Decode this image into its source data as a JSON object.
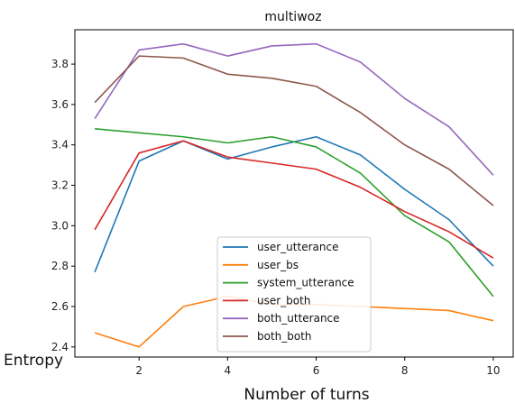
{
  "chart_data": {
    "type": "line",
    "title": "multiwoz",
    "xlabel": "Number of turns",
    "ylabel": "Entropy",
    "x": [
      1,
      2,
      3,
      4,
      5,
      6,
      7,
      8,
      9,
      10
    ],
    "xlim": [
      0.55,
      10.45
    ],
    "ylim": [
      2.35,
      3.97
    ],
    "xticks": [
      2,
      4,
      6,
      8,
      10
    ],
    "yticks": [
      2.4,
      2.6,
      2.8,
      3.0,
      3.2,
      3.4,
      3.6,
      3.8
    ],
    "ytick_labels": [
      "2.4",
      "2.6",
      "2.8",
      "3.0",
      "3.2",
      "3.4",
      "3.6",
      "3.8"
    ],
    "grid": false,
    "legend_position": "lower center",
    "series": [
      {
        "name": "user_utterance",
        "color": "#1f77b4",
        "values": [
          2.77,
          3.32,
          3.42,
          3.33,
          3.39,
          3.44,
          3.35,
          3.18,
          3.03,
          2.8
        ]
      },
      {
        "name": "user_bs",
        "color": "#ff7f0e",
        "values": [
          2.47,
          2.4,
          2.6,
          2.65,
          2.61,
          2.61,
          2.6,
          2.59,
          2.58,
          2.53
        ]
      },
      {
        "name": "system_utterance",
        "color": "#2ca02c",
        "values": [
          3.48,
          3.46,
          3.44,
          3.41,
          3.44,
          3.39,
          3.26,
          3.05,
          2.92,
          2.65
        ]
      },
      {
        "name": "user_both",
        "color": "#d62728",
        "values": [
          2.98,
          3.36,
          3.42,
          3.34,
          3.31,
          3.28,
          3.19,
          3.07,
          2.97,
          2.84
        ]
      },
      {
        "name": "both_utterance",
        "color": "#9467bd",
        "values": [
          3.53,
          3.87,
          3.9,
          3.84,
          3.89,
          3.9,
          3.81,
          3.63,
          3.49,
          3.25
        ]
      },
      {
        "name": "both_both",
        "color": "#8c564b",
        "values": [
          3.61,
          3.84,
          3.83,
          3.75,
          3.73,
          3.69,
          3.56,
          3.4,
          3.28,
          3.1
        ]
      }
    ]
  }
}
